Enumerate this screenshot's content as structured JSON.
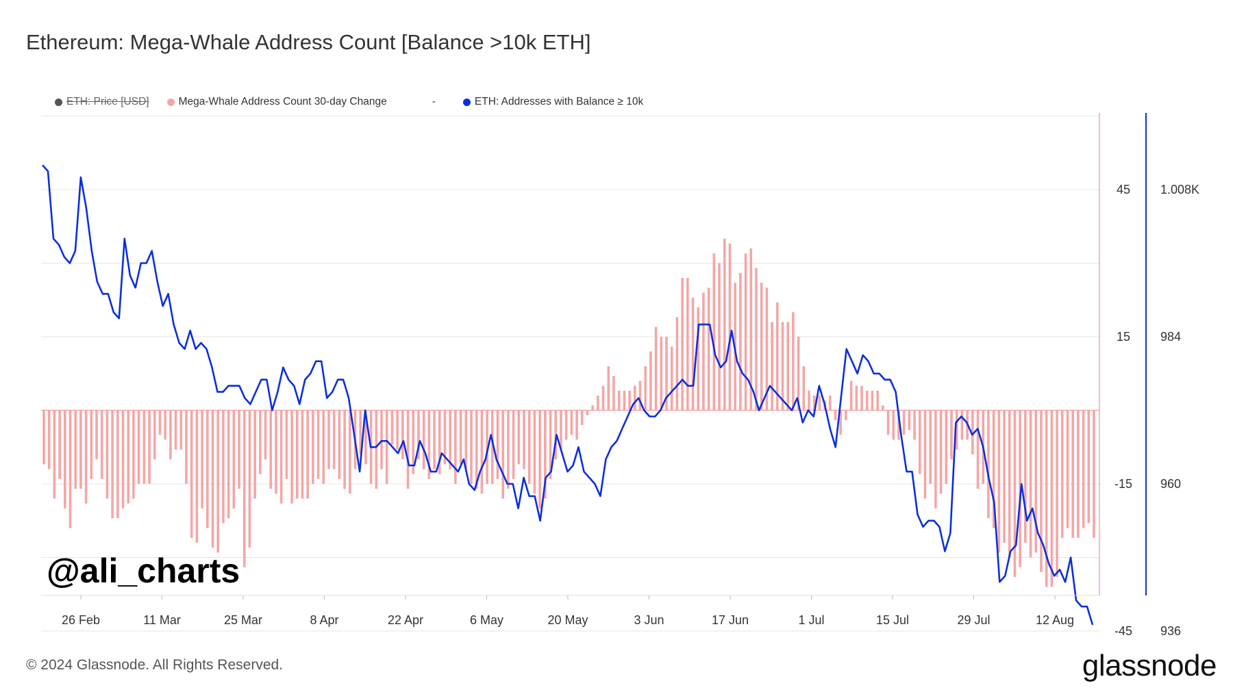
{
  "title": "Ethereum: Mega-Whale Address Count [Balance >10k ETH]",
  "legend": {
    "items": [
      {
        "label": "ETH: Price [USD]",
        "color": "#555555",
        "hidden": true
      },
      {
        "label": "Mega-Whale Address Count 30-day Change",
        "color": "#f4a6a6",
        "hidden": false
      },
      {
        "label": "-",
        "color": "",
        "hidden": false
      },
      {
        "label": "ETH: Addresses with Balance ≥ 10k",
        "color": "#0a2ee0",
        "hidden": false
      }
    ]
  },
  "watermark": "@ali_charts",
  "copyright": "© 2024 Glassnode. All Rights Reserved.",
  "brand": "glassnode",
  "chart_data": {
    "type": "bar+line",
    "x_tick_labels": [
      "26 Feb",
      "11 Mar",
      "25 Mar",
      "8 Apr",
      "22 Apr",
      "6 May",
      "20 May",
      "3 Jun",
      "17 Jun",
      "1 Jul",
      "15 Jul",
      "29 Jul",
      "12 Aug"
    ],
    "left_axis": {
      "ticks": [
        45,
        15,
        -15,
        -45
      ],
      "tick_labels": [
        "45",
        "15",
        "-15",
        "-45"
      ],
      "range": [
        -45,
        60
      ]
    },
    "right_axis": {
      "ticks": [
        1008,
        984,
        960,
        936
      ],
      "tick_labels": [
        "1.008K",
        "984",
        "960",
        "936"
      ],
      "range": [
        936,
        1016
      ]
    },
    "grid": true,
    "series": [
      {
        "name": "Mega-Whale Address Count 30-day Change",
        "type": "bar",
        "color": "#f4a6a6",
        "axis": "left",
        "values": [
          -11,
          -12,
          -18,
          -14,
          -20,
          -24,
          -16,
          -16,
          -19,
          -14,
          -10,
          -14,
          -18,
          -22,
          -22,
          -20,
          -19,
          -18,
          -15,
          -15,
          -15,
          -10,
          -5,
          -6,
          -10,
          -8,
          -8,
          -15,
          -26,
          -27,
          -20,
          -24,
          -28,
          -29,
          -23,
          -22,
          -20,
          -16,
          -32,
          -28,
          -18,
          -13,
          -10,
          -16,
          -17,
          -19,
          -14,
          -19,
          -18,
          -18,
          -18,
          -15,
          -14,
          -15,
          -12,
          -12,
          -14,
          -16,
          -17,
          -12,
          -9,
          -11,
          -15,
          -16,
          -12,
          -15,
          -7,
          -8,
          -10,
          -16,
          -13,
          -10,
          -12,
          -14,
          -12,
          -13,
          -11,
          -12,
          -15,
          -11,
          -12,
          -15,
          -16,
          -17,
          -15,
          -15,
          -14,
          -18,
          -16,
          -14,
          -11,
          -12,
          -15,
          -17,
          -20,
          -18,
          -14,
          -10,
          -8,
          -6,
          -5,
          -6,
          -3,
          -1,
          1,
          3,
          5,
          9,
          7,
          4,
          4,
          4,
          5,
          6,
          9,
          12,
          17,
          15,
          15,
          13,
          19,
          27,
          27,
          23,
          21,
          24,
          25,
          32,
          30,
          35,
          34,
          26,
          28,
          32,
          33,
          29,
          26,
          25,
          18,
          22,
          18,
          18,
          20,
          15,
          9,
          4,
          3,
          3,
          2,
          3,
          -2,
          -5,
          -2,
          6,
          5,
          5,
          4,
          4,
          4,
          1,
          -5,
          -6,
          -6,
          -5,
          -4,
          -6,
          -13,
          -18,
          -15,
          -20,
          -17,
          -15,
          -10,
          -8,
          -6,
          -6,
          -9,
          -16,
          -15,
          -22,
          -24,
          -29,
          -27,
          -30,
          -34,
          -32,
          -27,
          -30,
          -29,
          -33,
          -36,
          -36,
          -34,
          -26,
          -24,
          -26,
          -26,
          -24,
          -23,
          -26
        ]
      },
      {
        "name": "ETH: Addresses with Balance ≥ 10k",
        "type": "line",
        "color": "#0a2ee0",
        "axis": "right",
        "values": [
          1012,
          1011,
          1000,
          999,
          997,
          996,
          998,
          1010,
          1005,
          998,
          993,
          991,
          991,
          988,
          987,
          1000,
          994,
          992,
          996,
          996,
          998,
          993,
          989,
          991,
          986,
          983,
          982,
          985,
          982,
          983,
          982,
          979,
          975,
          975,
          976,
          976,
          976,
          974,
          973,
          975,
          977,
          977,
          972,
          975,
          979,
          977,
          976,
          973,
          977,
          978,
          980,
          980,
          974,
          975,
          977,
          977,
          974,
          968,
          962,
          972,
          966,
          966,
          967,
          967,
          966,
          965,
          967,
          963,
          963,
          967,
          965,
          962,
          962,
          965,
          964,
          963,
          962,
          964,
          960,
          959,
          962,
          964,
          968,
          964,
          962,
          960,
          960,
          956,
          961,
          958,
          958,
          954,
          961,
          962,
          968,
          965,
          962,
          963,
          966,
          962,
          961,
          960,
          958,
          964,
          966,
          967,
          969,
          971,
          973,
          974,
          972,
          971,
          971,
          972,
          974,
          975,
          976,
          977,
          976,
          976,
          986,
          986,
          986,
          981,
          979,
          980,
          985,
          980,
          978,
          977,
          975,
          972,
          974,
          976,
          975,
          974,
          973,
          972,
          974,
          970,
          972,
          971,
          976,
          973,
          969,
          966,
          974,
          982,
          980,
          978,
          981,
          980,
          978,
          978,
          977,
          977,
          975,
          968,
          962,
          962,
          955,
          953,
          954,
          954,
          953,
          949,
          952,
          970,
          971,
          970,
          968,
          969,
          966,
          961,
          957,
          944,
          945,
          949,
          950,
          960,
          954,
          956,
          952,
          950,
          947,
          945,
          946,
          944,
          948,
          941,
          940,
          940,
          937
        ]
      }
    ]
  }
}
